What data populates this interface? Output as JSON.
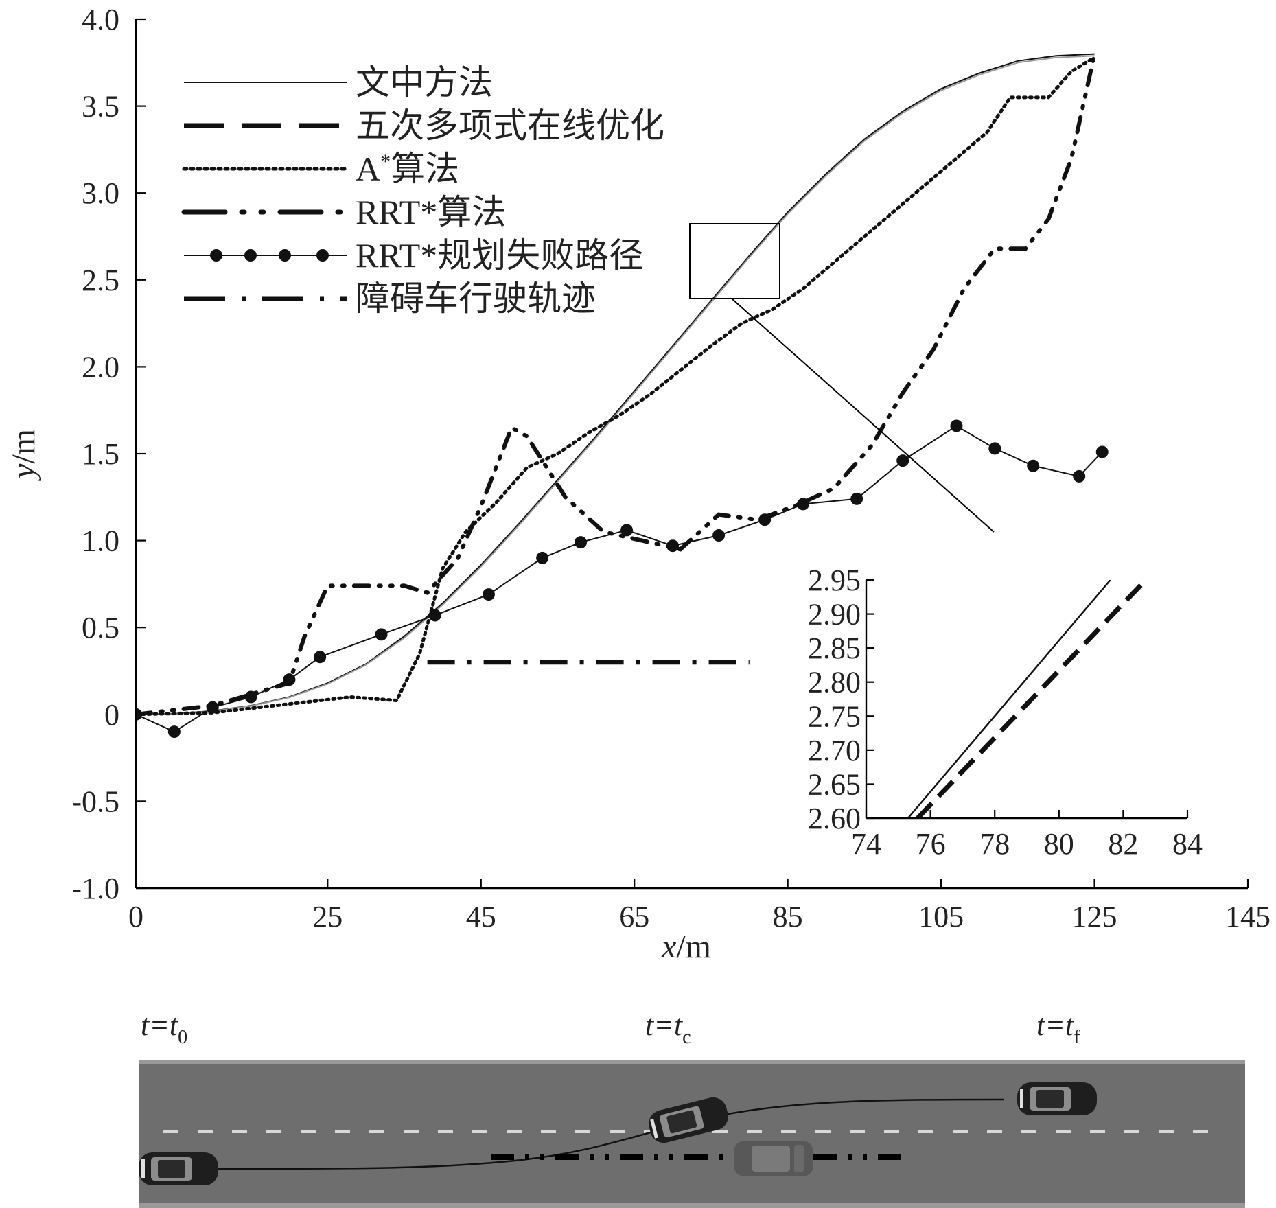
{
  "chart_data": [
    {
      "type": "line",
      "xlabel": "x/m",
      "ylabel": "y/m",
      "xlim": [
        0,
        145
      ],
      "ylim": [
        -1.0,
        4.0
      ],
      "xticks": [
        0,
        25,
        45,
        65,
        85,
        105,
        125,
        145
      ],
      "yticks": [
        -1.0,
        -0.5,
        0,
        0.5,
        1.0,
        1.5,
        2.0,
        2.5,
        3.0,
        3.5,
        4.0
      ],
      "xtick_labels": [
        "0",
        "25",
        "45",
        "65",
        "85",
        "105",
        "125",
        "145"
      ],
      "ytick_labels": [
        "-1.0",
        "-0.5",
        "0",
        "0.5",
        "1.0",
        "1.5",
        "2.0",
        "2.5",
        "3.0",
        "3.5",
        "4.0"
      ],
      "grid": false,
      "legend_position": "top-left",
      "series": [
        {
          "name": "文中方法",
          "style": "solid",
          "points": [
            [
              0,
              0
            ],
            [
              5,
              0.003
            ],
            [
              10,
              0.02
            ],
            [
              15,
              0.05
            ],
            [
              20,
              0.1
            ],
            [
              25,
              0.18
            ],
            [
              30,
              0.29
            ],
            [
              35,
              0.45
            ],
            [
              40,
              0.64
            ],
            [
              45,
              0.86
            ],
            [
              50,
              1.1
            ],
            [
              55,
              1.35
            ],
            [
              60,
              1.6
            ],
            [
              65,
              1.86
            ],
            [
              70,
              2.12
            ],
            [
              75,
              2.38
            ],
            [
              80,
              2.64
            ],
            [
              85,
              2.89
            ],
            [
              90,
              3.11
            ],
            [
              95,
              3.31
            ],
            [
              100,
              3.47
            ],
            [
              105,
              3.6
            ],
            [
              110,
              3.69
            ],
            [
              115,
              3.76
            ],
            [
              120,
              3.79
            ],
            [
              125,
              3.8
            ]
          ]
        },
        {
          "name": "五次多项式在线优化",
          "style": "dashed",
          "points": [
            [
              0,
              0
            ],
            [
              5,
              0.002
            ],
            [
              10,
              0.018
            ],
            [
              15,
              0.048
            ],
            [
              20,
              0.097
            ],
            [
              25,
              0.175
            ],
            [
              30,
              0.285
            ],
            [
              35,
              0.44
            ],
            [
              40,
              0.63
            ],
            [
              45,
              0.85
            ],
            [
              50,
              1.09
            ],
            [
              55,
              1.34
            ],
            [
              60,
              1.59
            ],
            [
              65,
              1.85
            ],
            [
              70,
              2.11
            ],
            [
              75,
              2.37
            ],
            [
              80,
              2.63
            ],
            [
              85,
              2.88
            ],
            [
              90,
              3.1
            ],
            [
              95,
              3.3
            ],
            [
              100,
              3.46
            ],
            [
              105,
              3.59
            ],
            [
              110,
              3.68
            ],
            [
              115,
              3.75
            ],
            [
              120,
              3.78
            ],
            [
              125,
              3.79
            ]
          ]
        },
        {
          "name": "A*算法",
          "style": "dotted",
          "points": [
            [
              0,
              0
            ],
            [
              10,
              0.01
            ],
            [
              20,
              0.06
            ],
            [
              28,
              0.1
            ],
            [
              34,
              0.08
            ],
            [
              37,
              0.35
            ],
            [
              40,
              0.84
            ],
            [
              43,
              1.05
            ],
            [
              47,
              1.22
            ],
            [
              51,
              1.42
            ],
            [
              55,
              1.5
            ],
            [
              59,
              1.62
            ],
            [
              63,
              1.72
            ],
            [
              67,
              1.84
            ],
            [
              71,
              1.98
            ],
            [
              75,
              2.12
            ],
            [
              79,
              2.25
            ],
            [
              83,
              2.33
            ],
            [
              87,
              2.45
            ],
            [
              91,
              2.6
            ],
            [
              95,
              2.75
            ],
            [
              99,
              2.9
            ],
            [
              103,
              3.05
            ],
            [
              107,
              3.2
            ],
            [
              111,
              3.35
            ],
            [
              114,
              3.55
            ],
            [
              119,
              3.55
            ],
            [
              122,
              3.7
            ],
            [
              125,
              3.78
            ]
          ]
        },
        {
          "name": "RRT*算法",
          "style": "dashdotdot",
          "points": [
            [
              0,
              0
            ],
            [
              10,
              0.05
            ],
            [
              20,
              0.18
            ],
            [
              22,
              0.45
            ],
            [
              25,
              0.74
            ],
            [
              30,
              0.74
            ],
            [
              35,
              0.74
            ],
            [
              38,
              0.7
            ],
            [
              42,
              0.9
            ],
            [
              45,
              1.2
            ],
            [
              49,
              1.65
            ],
            [
              51,
              1.6
            ],
            [
              56,
              1.25
            ],
            [
              61,
              1.05
            ],
            [
              66,
              1.0
            ],
            [
              71,
              0.95
            ],
            [
              76,
              1.15
            ],
            [
              81,
              1.12
            ],
            [
              86,
              1.2
            ],
            [
              91,
              1.3
            ],
            [
              96,
              1.55
            ],
            [
              100,
              1.85
            ],
            [
              104,
              2.1
            ],
            [
              108,
              2.45
            ],
            [
              112,
              2.68
            ],
            [
              116,
              2.68
            ],
            [
              119,
              2.85
            ],
            [
              122,
              3.2
            ],
            [
              125,
              3.8
            ]
          ]
        },
        {
          "name": "RRT*规划失败路径",
          "style": "solid-markers",
          "points": [
            [
              0,
              0
            ],
            [
              5,
              -0.1
            ],
            [
              10,
              0.04
            ],
            [
              15,
              0.1
            ],
            [
              20,
              0.2
            ],
            [
              24,
              0.33
            ],
            [
              32,
              0.46
            ],
            [
              39,
              0.57
            ],
            [
              46,
              0.69
            ],
            [
              53,
              0.9
            ],
            [
              58,
              0.99
            ],
            [
              64,
              1.06
            ],
            [
              70,
              0.97
            ],
            [
              76,
              1.03
            ],
            [
              82,
              1.12
            ],
            [
              87,
              1.21
            ],
            [
              94,
              1.24
            ],
            [
              100,
              1.46
            ],
            [
              107,
              1.66
            ],
            [
              112,
              1.53
            ],
            [
              117,
              1.43
            ],
            [
              123,
              1.37
            ],
            [
              126,
              1.51
            ]
          ]
        },
        {
          "name": "障碍车行驶轨迹",
          "style": "dashdot",
          "points": [
            [
              38,
              0.3
            ],
            [
              80,
              0.3
            ]
          ]
        }
      ]
    },
    {
      "type": "line",
      "xlim": [
        74,
        84
      ],
      "ylim": [
        2.6,
        2.95
      ],
      "xticks": [
        74,
        76,
        78,
        80,
        82,
        84
      ],
      "yticks": [
        2.6,
        2.65,
        2.7,
        2.75,
        2.8,
        2.85,
        2.9,
        2.95
      ],
      "xtick_labels": [
        "74",
        "76",
        "78",
        "80",
        "82",
        "84"
      ],
      "ytick_labels": [
        "2.60",
        "2.65",
        "2.70",
        "2.75",
        "2.80",
        "2.85",
        "2.90",
        "2.95"
      ],
      "series": [
        {
          "name": "文中方法",
          "style": "solid",
          "points": [
            [
              75.3,
              2.6
            ],
            [
              81.6,
              2.95
            ]
          ]
        },
        {
          "name": "五次多项式在线优化",
          "style": "dashed",
          "points": [
            [
              75.6,
              2.6
            ],
            [
              82.7,
              2.95
            ]
          ]
        }
      ]
    }
  ],
  "scene": {
    "labels": [
      {
        "main": "t=t",
        "sub": "0"
      },
      {
        "main": "t=t",
        "sub": "c"
      },
      {
        "main": "t=t",
        "sub": "f"
      }
    ],
    "colors": {
      "road": "#6e6e6e",
      "edge": "#9a9a9a",
      "lane_mark": "#d8d8d8",
      "car_body": "#1e1e1e",
      "obstacle_car": "#585858"
    }
  }
}
